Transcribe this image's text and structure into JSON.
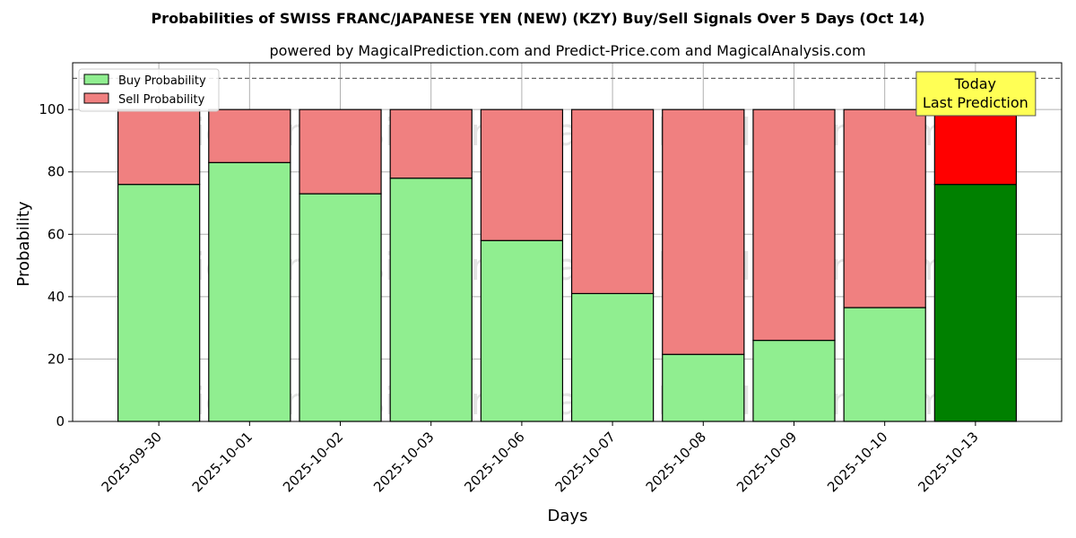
{
  "chart_data": {
    "type": "bar",
    "stacked": true,
    "title": "Probabilities of SWISS FRANC/JAPANESE YEN (NEW) (KZY) Buy/Sell Signals Over 5 Days (Oct 14)",
    "subtitle": "powered by MagicalPrediction.com and Predict-Price.com and MagicalAnalysis.com",
    "xlabel": "Days",
    "ylabel": "Probability",
    "ylim": [
      0,
      115
    ],
    "yticks": [
      0,
      20,
      40,
      60,
      80,
      100
    ],
    "grid": true,
    "legend_position": "top-left",
    "reference_line": 110,
    "categories": [
      "2025-09-30",
      "2025-10-01",
      "2025-10-02",
      "2025-10-03",
      "2025-10-06",
      "2025-10-07",
      "2025-10-08",
      "2025-10-09",
      "2025-10-10",
      "2025-10-13"
    ],
    "series": [
      {
        "name": "Buy Probability",
        "color": "#90ee90",
        "values": [
          76,
          83,
          73,
          78,
          58,
          41,
          21.5,
          26,
          36.5,
          76
        ]
      },
      {
        "name": "Sell Probability",
        "color": "#f08080",
        "values": [
          24,
          17,
          27,
          22,
          42,
          59,
          78.5,
          74,
          63.5,
          24
        ]
      }
    ],
    "highlight": {
      "index": 9,
      "buy_color": "#008000",
      "sell_color": "#ff0000"
    },
    "annotation": {
      "line1": "Today",
      "line2": "Last Prediction",
      "bg": "#ffff55"
    },
    "watermarks": [
      "MagicalAnalysis.com",
      "MagicalPrediction.com"
    ]
  }
}
